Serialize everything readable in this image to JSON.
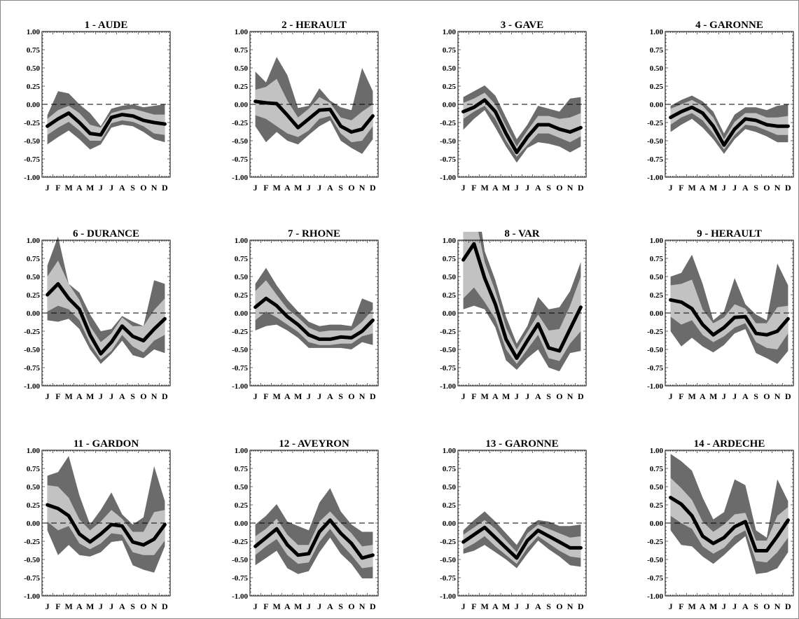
{
  "colors": {
    "outer_band": "#6b6b6b",
    "inner_band": "#c2c2c2",
    "median_line": "#000000",
    "zero_line": "#000000",
    "axis": "#000000"
  },
  "chart_data": [
    {
      "type": "area",
      "title": "1 - AUDE",
      "ylim": [
        -1.0,
        1.0
      ],
      "yticks": [
        "1.00",
        "0.75",
        "0.50",
        "0.25",
        "0.00",
        "-0.25",
        "-0.50",
        "-0.75",
        "-1.00"
      ],
      "x": [
        "J",
        "F",
        "M",
        "A",
        "M",
        "J",
        "J",
        "A",
        "S",
        "O",
        "N",
        "D"
      ],
      "median": [
        -0.3,
        -0.2,
        -0.12,
        -0.25,
        -0.4,
        -0.42,
        -0.18,
        -0.14,
        -0.16,
        -0.22,
        -0.25,
        -0.27
      ],
      "inner_band": {
        "lower": [
          -0.42,
          -0.32,
          -0.24,
          -0.36,
          -0.5,
          -0.5,
          -0.26,
          -0.22,
          -0.24,
          -0.3,
          -0.4,
          -0.42
        ],
        "upper": [
          -0.2,
          -0.08,
          -0.02,
          -0.12,
          -0.28,
          -0.32,
          -0.12,
          -0.08,
          -0.06,
          -0.1,
          -0.14,
          -0.14
        ]
      },
      "outer_band": {
        "lower": [
          -0.55,
          -0.45,
          -0.36,
          -0.48,
          -0.62,
          -0.55,
          -0.32,
          -0.28,
          -0.3,
          -0.38,
          -0.48,
          -0.52
        ],
        "upper": [
          -0.15,
          0.18,
          0.15,
          0.0,
          -0.12,
          -0.3,
          -0.06,
          -0.02,
          0.0,
          -0.04,
          -0.02,
          0.0
        ]
      }
    },
    {
      "type": "area",
      "title": "2 - HERAULT",
      "ylim": [
        -1.0,
        1.0
      ],
      "yticks": [
        "1.00",
        "0.75",
        "0.50",
        "0.25",
        "0.00",
        "-0.25",
        "-0.50",
        "-0.75",
        "-1.00"
      ],
      "x": [
        "J",
        "F",
        "M",
        "A",
        "M",
        "J",
        "J",
        "A",
        "S",
        "O",
        "N",
        "D"
      ],
      "median": [
        0.04,
        0.02,
        0.01,
        -0.15,
        -0.32,
        -0.2,
        -0.08,
        -0.07,
        -0.3,
        -0.38,
        -0.34,
        -0.16
      ],
      "inner_band": {
        "lower": [
          -0.15,
          -0.2,
          -0.3,
          -0.4,
          -0.45,
          -0.36,
          -0.2,
          -0.16,
          -0.4,
          -0.52,
          -0.5,
          -0.3
        ],
        "upper": [
          0.2,
          0.24,
          0.35,
          0.05,
          -0.18,
          -0.06,
          0.1,
          0.02,
          -0.18,
          -0.22,
          -0.1,
          0.0
        ]
      },
      "outer_band": {
        "lower": [
          -0.3,
          -0.52,
          -0.38,
          -0.5,
          -0.55,
          -0.42,
          -0.3,
          -0.22,
          -0.5,
          -0.6,
          -0.68,
          -0.48
        ],
        "upper": [
          0.45,
          0.3,
          0.65,
          0.4,
          -0.05,
          -0.02,
          0.22,
          0.05,
          -0.04,
          -0.08,
          0.5,
          0.18
        ]
      }
    },
    {
      "type": "area",
      "title": "3 - GAVE",
      "ylim": [
        -1.0,
        1.0
      ],
      "yticks": [
        "1.00",
        "0.75",
        "0.50",
        "0.25",
        "0.00",
        "-0.25",
        "-0.50",
        "-0.75",
        "-1.00"
      ],
      "x": [
        "J",
        "F",
        "M",
        "A",
        "M",
        "J",
        "J",
        "A",
        "S",
        "O",
        "N",
        "D"
      ],
      "median": [
        -0.1,
        -0.04,
        0.06,
        -0.1,
        -0.4,
        -0.66,
        -0.45,
        -0.28,
        -0.28,
        -0.34,
        -0.38,
        -0.32
      ],
      "inner_band": {
        "lower": [
          -0.2,
          -0.1,
          -0.02,
          -0.2,
          -0.5,
          -0.72,
          -0.56,
          -0.4,
          -0.4,
          -0.46,
          -0.52,
          -0.44
        ],
        "upper": [
          0.02,
          0.08,
          0.16,
          0.0,
          -0.3,
          -0.58,
          -0.36,
          -0.16,
          -0.16,
          -0.2,
          -0.18,
          -0.12
        ]
      },
      "outer_band": {
        "lower": [
          -0.35,
          -0.2,
          -0.08,
          -0.32,
          -0.58,
          -0.8,
          -0.6,
          -0.52,
          -0.54,
          -0.58,
          -0.66,
          -0.58
        ],
        "upper": [
          0.1,
          0.18,
          0.26,
          0.12,
          -0.18,
          -0.48,
          -0.28,
          -0.02,
          -0.06,
          -0.1,
          0.08,
          0.1
        ]
      }
    },
    {
      "type": "area",
      "title": "4 - GARONNE",
      "ylim": [
        -1.0,
        1.0
      ],
      "yticks": [
        "1.00",
        "0.75",
        "0.50",
        "0.25",
        "0.00",
        "-0.25",
        "-0.50",
        "-0.75",
        "-1.00"
      ],
      "x": [
        "J",
        "F",
        "M",
        "A",
        "M",
        "J",
        "J",
        "A",
        "S",
        "O",
        "N",
        "D"
      ],
      "median": [
        -0.18,
        -0.1,
        -0.04,
        -0.12,
        -0.3,
        -0.56,
        -0.34,
        -0.2,
        -0.22,
        -0.28,
        -0.3,
        -0.3
      ],
      "inner_band": {
        "lower": [
          -0.28,
          -0.18,
          -0.12,
          -0.22,
          -0.4,
          -0.62,
          -0.42,
          -0.28,
          -0.3,
          -0.36,
          -0.42,
          -0.42
        ],
        "upper": [
          -0.06,
          0.0,
          0.06,
          -0.02,
          -0.18,
          -0.48,
          -0.24,
          -0.12,
          -0.12,
          -0.18,
          -0.18,
          -0.16
        ]
      },
      "outer_band": {
        "lower": [
          -0.38,
          -0.28,
          -0.2,
          -0.32,
          -0.48,
          -0.68,
          -0.48,
          -0.34,
          -0.38,
          -0.44,
          -0.52,
          -0.52
        ],
        "upper": [
          -0.02,
          0.06,
          0.12,
          0.04,
          -0.1,
          -0.4,
          -0.14,
          -0.04,
          -0.04,
          -0.08,
          -0.02,
          0.0
        ]
      }
    },
    {
      "type": "area",
      "title": "6 - DURANCE",
      "ylim": [
        -1.0,
        1.0
      ],
      "yticks": [
        "1.00",
        "0.75",
        "0.50",
        "0.25",
        "0.00",
        "-0.25",
        "-0.50",
        "-0.75",
        "-1.00"
      ],
      "x": [
        "J",
        "F",
        "M",
        "A",
        "M",
        "J",
        "J",
        "A",
        "S",
        "O",
        "N",
        "D"
      ],
      "median": [
        0.25,
        0.4,
        0.2,
        0.05,
        -0.3,
        -0.56,
        -0.4,
        -0.18,
        -0.32,
        -0.38,
        -0.22,
        -0.08
      ],
      "inner_band": {
        "lower": [
          0.02,
          0.1,
          0.05,
          -0.1,
          -0.42,
          -0.64,
          -0.52,
          -0.3,
          -0.46,
          -0.54,
          -0.38,
          -0.3
        ],
        "upper": [
          0.5,
          0.72,
          0.4,
          0.18,
          -0.18,
          -0.4,
          -0.28,
          -0.06,
          -0.18,
          -0.18,
          0.04,
          0.2
        ]
      },
      "outer_band": {
        "lower": [
          -0.1,
          -0.12,
          -0.08,
          -0.22,
          -0.5,
          -0.7,
          -0.56,
          -0.38,
          -0.58,
          -0.62,
          -0.5,
          -0.55
        ],
        "upper": [
          0.65,
          1.05,
          0.4,
          0.28,
          -0.02,
          -0.25,
          -0.22,
          -0.04,
          -0.12,
          -0.18,
          0.45,
          0.4
        ]
      }
    },
    {
      "type": "area",
      "title": "7 - RHONE",
      "ylim": [
        -1.0,
        1.0
      ],
      "yticks": [
        "1.00",
        "0.75",
        "0.50",
        "0.25",
        "0.00",
        "-0.25",
        "-0.50",
        "-0.75",
        "-1.00"
      ],
      "x": [
        "J",
        "F",
        "M",
        "A",
        "M",
        "J",
        "J",
        "A",
        "S",
        "O",
        "N",
        "D"
      ],
      "median": [
        0.08,
        0.2,
        0.1,
        -0.05,
        -0.16,
        -0.3,
        -0.36,
        -0.36,
        -0.33,
        -0.34,
        -0.25,
        -0.1
      ],
      "inner_band": {
        "lower": [
          -0.1,
          0.02,
          -0.06,
          -0.16,
          -0.26,
          -0.4,
          -0.44,
          -0.44,
          -0.42,
          -0.42,
          -0.32,
          -0.28
        ],
        "upper": [
          0.3,
          0.45,
          0.25,
          0.06,
          -0.06,
          -0.2,
          -0.26,
          -0.24,
          -0.24,
          -0.24,
          -0.12,
          0.05
        ]
      },
      "outer_band": {
        "lower": [
          -0.24,
          -0.18,
          -0.16,
          -0.24,
          -0.34,
          -0.48,
          -0.48,
          -0.48,
          -0.48,
          -0.5,
          -0.4,
          -0.44
        ],
        "upper": [
          0.4,
          0.62,
          0.38,
          0.18,
          0.02,
          -0.12,
          -0.18,
          -0.16,
          -0.16,
          -0.18,
          0.2,
          0.14
        ]
      }
    },
    {
      "type": "area",
      "title": "8 - VAR",
      "ylim": [
        -1.0,
        1.0
      ],
      "yticks": [
        "1.00",
        "0.75",
        "0.50",
        "0.25",
        "0.00",
        "-0.25",
        "-0.50",
        "-0.75",
        "-1.00"
      ],
      "x": [
        "J",
        "F",
        "M",
        "A",
        "M",
        "J",
        "J",
        "A",
        "S",
        "O",
        "N",
        "D"
      ],
      "median": [
        0.73,
        0.95,
        0.48,
        0.12,
        -0.36,
        -0.62,
        -0.38,
        -0.15,
        -0.48,
        -0.52,
        -0.22,
        0.08
      ],
      "inner_band": {
        "lower": [
          0.2,
          0.35,
          0.15,
          -0.08,
          -0.5,
          -0.7,
          -0.5,
          -0.3,
          -0.62,
          -0.66,
          -0.42,
          -0.25
        ],
        "upper": [
          1.15,
          1.4,
          0.7,
          0.3,
          -0.2,
          -0.5,
          -0.26,
          -0.02,
          -0.24,
          -0.22,
          0.1,
          0.5
        ]
      },
      "outer_band": {
        "lower": [
          0.05,
          0.1,
          0.05,
          -0.2,
          -0.65,
          -0.78,
          -0.62,
          -0.5,
          -0.75,
          -0.8,
          -0.55,
          -0.52
        ],
        "upper": [
          1.9,
          1.85,
          0.85,
          0.45,
          -0.05,
          -0.42,
          -0.18,
          0.22,
          0.05,
          0.08,
          0.3,
          0.7
        ]
      }
    },
    {
      "type": "area",
      "title": "9 - HERAULT",
      "ylim": [
        -1.0,
        1.0
      ],
      "yticks": [
        "1.00",
        "0.75",
        "0.50",
        "0.25",
        "0.00",
        "-0.25",
        "-0.50",
        "-0.75",
        "-1.00"
      ],
      "x": [
        "J",
        "F",
        "M",
        "A",
        "M",
        "J",
        "J",
        "A",
        "S",
        "O",
        "N",
        "D"
      ],
      "median": [
        0.18,
        0.15,
        0.06,
        -0.16,
        -0.3,
        -0.2,
        -0.06,
        -0.05,
        -0.28,
        -0.3,
        -0.25,
        -0.08
      ],
      "inner_band": {
        "lower": [
          -0.05,
          -0.16,
          -0.1,
          -0.3,
          -0.4,
          -0.32,
          -0.2,
          -0.14,
          -0.4,
          -0.48,
          -0.5,
          -0.28
        ],
        "upper": [
          0.38,
          0.4,
          0.46,
          0.05,
          -0.14,
          -0.06,
          0.12,
          0.06,
          -0.14,
          -0.14,
          0.08,
          0.1
        ]
      },
      "outer_band": {
        "lower": [
          -0.25,
          -0.46,
          -0.34,
          -0.46,
          -0.54,
          -0.44,
          -0.28,
          -0.22,
          -0.55,
          -0.62,
          -0.7,
          -0.52
        ],
        "upper": [
          0.5,
          0.55,
          0.8,
          0.4,
          -0.1,
          0.02,
          0.48,
          0.12,
          -0.02,
          -0.1,
          0.68,
          0.38
        ]
      }
    },
    {
      "type": "area",
      "title": "11 - GARDON",
      "ylim": [
        -1.0,
        1.0
      ],
      "yticks": [
        "1.00",
        "0.75",
        "0.50",
        "0.25",
        "0.00",
        "-0.25",
        "-0.50",
        "-0.75",
        "-1.00"
      ],
      "x": [
        "J",
        "F",
        "M",
        "A",
        "M",
        "J",
        "J",
        "A",
        "S",
        "O",
        "N",
        "D"
      ],
      "median": [
        0.25,
        0.2,
        0.1,
        -0.15,
        -0.26,
        -0.15,
        -0.02,
        -0.04,
        -0.26,
        -0.3,
        -0.22,
        -0.02
      ],
      "inner_band": {
        "lower": [
          0.02,
          -0.1,
          -0.04,
          -0.28,
          -0.36,
          -0.28,
          -0.14,
          -0.16,
          -0.4,
          -0.44,
          -0.44,
          -0.24
        ],
        "upper": [
          0.52,
          0.5,
          0.35,
          0.05,
          -0.1,
          0.02,
          0.18,
          0.06,
          -0.12,
          -0.12,
          0.15,
          0.18
        ]
      },
      "outer_band": {
        "lower": [
          -0.1,
          -0.44,
          -0.3,
          -0.44,
          -0.46,
          -0.4,
          -0.26,
          -0.24,
          -0.58,
          -0.64,
          -0.68,
          -0.32
        ],
        "upper": [
          0.65,
          0.7,
          0.92,
          0.38,
          -0.02,
          0.18,
          0.42,
          0.12,
          -0.02,
          0.08,
          0.78,
          0.3
        ]
      }
    },
    {
      "type": "area",
      "title": "12 - AVEYRON",
      "ylim": [
        -1.0,
        1.0
      ],
      "yticks": [
        "1.00",
        "0.75",
        "0.50",
        "0.25",
        "0.00",
        "-0.25",
        "-0.50",
        "-0.75",
        "-1.00"
      ],
      "x": [
        "J",
        "F",
        "M",
        "A",
        "M",
        "J",
        "J",
        "A",
        "S",
        "O",
        "N",
        "D"
      ],
      "median": [
        -0.32,
        -0.2,
        -0.08,
        -0.3,
        -0.44,
        -0.42,
        -0.12,
        0.04,
        -0.14,
        -0.28,
        -0.48,
        -0.44
      ],
      "inner_band": {
        "lower": [
          -0.44,
          -0.32,
          -0.22,
          -0.44,
          -0.56,
          -0.54,
          -0.26,
          -0.08,
          -0.28,
          -0.44,
          -0.62,
          -0.6
        ],
        "upper": [
          -0.18,
          -0.08,
          0.06,
          -0.16,
          -0.3,
          -0.3,
          0.02,
          0.16,
          0.0,
          -0.14,
          -0.32,
          -0.3
        ]
      },
      "outer_band": {
        "lower": [
          -0.58,
          -0.48,
          -0.38,
          -0.62,
          -0.7,
          -0.66,
          -0.4,
          -0.2,
          -0.42,
          -0.56,
          -0.76,
          -0.76
        ],
        "upper": [
          -0.02,
          0.1,
          0.26,
          0.02,
          -0.04,
          -0.1,
          0.28,
          0.48,
          0.16,
          -0.02,
          -0.12,
          -0.12
        ]
      }
    },
    {
      "type": "area",
      "title": "13 - GARONNE",
      "ylim": [
        -1.0,
        1.0
      ],
      "yticks": [
        "1.00",
        "0.75",
        "0.50",
        "0.25",
        "0.00",
        "-0.25",
        "-0.50",
        "-0.75",
        "-1.00"
      ],
      "x": [
        "J",
        "F",
        "M",
        "A",
        "M",
        "J",
        "J",
        "A",
        "S",
        "O",
        "N",
        "D"
      ],
      "median": [
        -0.26,
        -0.16,
        -0.06,
        -0.2,
        -0.34,
        -0.48,
        -0.24,
        -0.1,
        -0.18,
        -0.26,
        -0.34,
        -0.34
      ],
      "inner_band": {
        "lower": [
          -0.36,
          -0.28,
          -0.18,
          -0.32,
          -0.44,
          -0.56,
          -0.34,
          -0.18,
          -0.28,
          -0.38,
          -0.46,
          -0.48
        ],
        "upper": [
          -0.16,
          -0.06,
          0.04,
          -0.08,
          -0.24,
          -0.4,
          -0.14,
          -0.02,
          -0.08,
          -0.14,
          -0.2,
          -0.18
        ]
      },
      "outer_band": {
        "lower": [
          -0.42,
          -0.38,
          -0.3,
          -0.4,
          -0.5,
          -0.62,
          -0.42,
          -0.24,
          -0.36,
          -0.46,
          -0.58,
          -0.6
        ],
        "upper": [
          -0.1,
          0.04,
          0.16,
          0.02,
          -0.14,
          -0.3,
          -0.06,
          0.04,
          0.02,
          -0.04,
          -0.04,
          -0.02
        ]
      }
    },
    {
      "type": "area",
      "title": "14 - ARDECHE",
      "ylim": [
        -1.0,
        1.0
      ],
      "yticks": [
        "1.00",
        "0.75",
        "0.50",
        "0.25",
        "0.00",
        "-0.25",
        "-0.50",
        "-0.75",
        "-1.00"
      ],
      "x": [
        "J",
        "F",
        "M",
        "A",
        "M",
        "J",
        "J",
        "A",
        "S",
        "O",
        "N",
        "D"
      ],
      "median": [
        0.35,
        0.26,
        0.1,
        -0.18,
        -0.28,
        -0.2,
        -0.05,
        0.02,
        -0.38,
        -0.38,
        -0.18,
        0.04
      ],
      "inner_band": {
        "lower": [
          0.1,
          0.0,
          -0.08,
          -0.32,
          -0.42,
          -0.34,
          -0.18,
          -0.1,
          -0.52,
          -0.54,
          -0.4,
          -0.2
        ],
        "upper": [
          0.62,
          0.48,
          0.32,
          0.02,
          -0.12,
          -0.02,
          0.12,
          0.14,
          -0.24,
          -0.24,
          0.1,
          0.22
        ]
      },
      "outer_band": {
        "lower": [
          -0.1,
          -0.3,
          -0.32,
          -0.46,
          -0.56,
          -0.44,
          -0.3,
          -0.18,
          -0.7,
          -0.68,
          -0.62,
          -0.4
        ],
        "upper": [
          0.95,
          0.85,
          0.72,
          0.35,
          0.05,
          0.15,
          0.6,
          0.52,
          -0.1,
          -0.2,
          0.6,
          0.3
        ]
      }
    }
  ]
}
